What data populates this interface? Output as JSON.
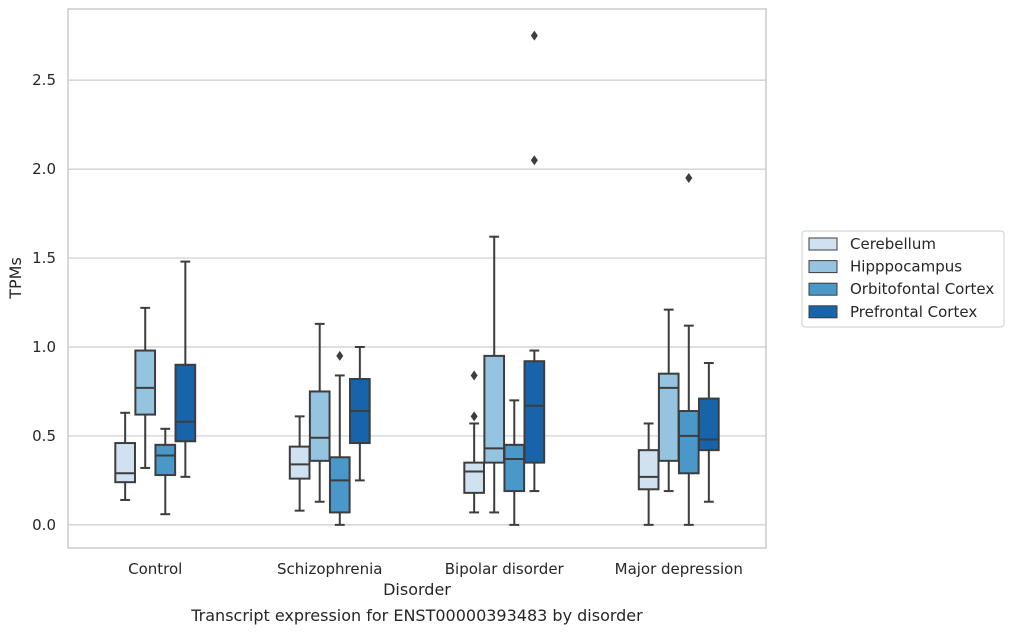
{
  "caption": "Transcript expression for ENST00000393483 by disorder",
  "chart_data": {
    "type": "box",
    "xlabel": "Disorder",
    "ylabel": "TPMs",
    "ylim": [
      -0.13,
      2.9
    ],
    "yticks": [
      "0.0",
      "0.5",
      "1.0",
      "1.5",
      "2.0",
      "2.5"
    ],
    "grid": true,
    "legend_position": "right",
    "categories": [
      "Control",
      "Schizophrenia",
      "Bipolar disorder",
      "Major depression"
    ],
    "series": [
      {
        "name": "Cerebellum",
        "color": "#d0e1f2",
        "boxes": [
          {
            "whislo": 0.14,
            "q1": 0.24,
            "med": 0.29,
            "q3": 0.46,
            "whishi": 0.63,
            "fliers": []
          },
          {
            "whislo": 0.08,
            "q1": 0.26,
            "med": 0.34,
            "q3": 0.44,
            "whishi": 0.61,
            "fliers": []
          },
          {
            "whislo": 0.07,
            "q1": 0.18,
            "med": 0.3,
            "q3": 0.35,
            "whishi": 0.57,
            "fliers": [
              0.61,
              0.84
            ]
          },
          {
            "whislo": 0.0,
            "q1": 0.2,
            "med": 0.27,
            "q3": 0.42,
            "whishi": 0.57,
            "fliers": []
          }
        ]
      },
      {
        "name": "Hipppocampus",
        "color": "#94c4df",
        "boxes": [
          {
            "whislo": 0.32,
            "q1": 0.62,
            "med": 0.77,
            "q3": 0.98,
            "whishi": 1.22,
            "fliers": []
          },
          {
            "whislo": 0.13,
            "q1": 0.36,
            "med": 0.49,
            "q3": 0.75,
            "whishi": 1.13,
            "fliers": []
          },
          {
            "whislo": 0.07,
            "q1": 0.35,
            "med": 0.43,
            "q3": 0.95,
            "whishi": 1.62,
            "fliers": []
          },
          {
            "whislo": 0.19,
            "q1": 0.36,
            "med": 0.77,
            "q3": 0.85,
            "whishi": 1.21,
            "fliers": []
          }
        ]
      },
      {
        "name": "Orbitofontal Cortex",
        "color": "#4a98c9",
        "boxes": [
          {
            "whislo": 0.06,
            "q1": 0.28,
            "med": 0.39,
            "q3": 0.45,
            "whishi": 0.54,
            "fliers": []
          },
          {
            "whislo": 0.0,
            "q1": 0.07,
            "med": 0.25,
            "q3": 0.38,
            "whishi": 0.84,
            "fliers": [
              0.95
            ]
          },
          {
            "whislo": 0.0,
            "q1": 0.19,
            "med": 0.37,
            "q3": 0.45,
            "whishi": 0.7,
            "fliers": []
          },
          {
            "whislo": 0.0,
            "q1": 0.29,
            "med": 0.5,
            "q3": 0.64,
            "whishi": 1.12,
            "fliers": [
              1.95
            ]
          }
        ]
      },
      {
        "name": "Prefrontal Cortex",
        "color": "#1764ab",
        "boxes": [
          {
            "whislo": 0.27,
            "q1": 0.47,
            "med": 0.58,
            "q3": 0.9,
            "whishi": 1.48,
            "fliers": []
          },
          {
            "whislo": 0.25,
            "q1": 0.46,
            "med": 0.64,
            "q3": 0.82,
            "whishi": 1.0,
            "fliers": []
          },
          {
            "whislo": 0.19,
            "q1": 0.35,
            "med": 0.67,
            "q3": 0.92,
            "whishi": 0.98,
            "fliers": [
              2.05,
              2.75
            ]
          },
          {
            "whislo": 0.13,
            "q1": 0.42,
            "med": 0.48,
            "q3": 0.71,
            "whishi": 0.91,
            "fliers": []
          }
        ]
      }
    ]
  }
}
